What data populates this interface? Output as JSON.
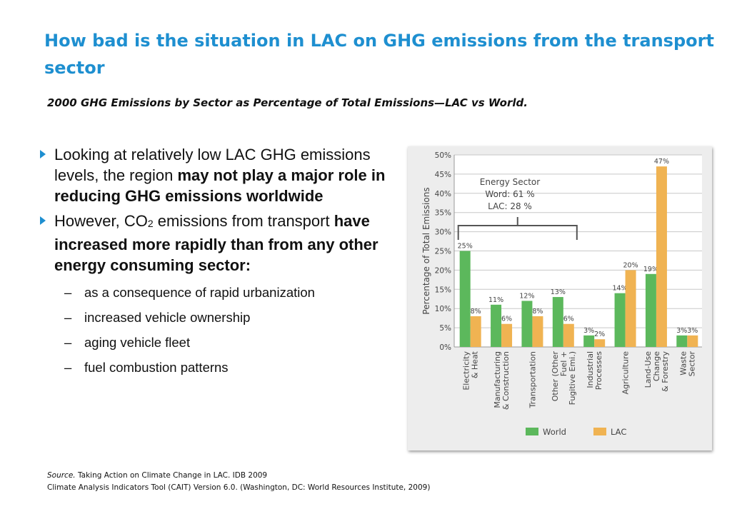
{
  "slide": {
    "title": "How bad is the situation in LAC on GHG emissions from the transport sector",
    "chart_caption": "2000 GHG Emissions by Sector as Percentage of Total Emissions—LAC vs World."
  },
  "bullets": [
    {
      "pre": "Looking at relatively low LAC GHG emissions levels, the region ",
      "bold": "may not play a major role in reducing GHG emissions worldwide"
    },
    {
      "pre": "However, CO",
      "sub": "2",
      "mid": " emissions from transport ",
      "bold": "have increased more rapidly than from any other energy consuming sector:"
    }
  ],
  "subbullets": [
    "as a consequence of rapid urbanization",
    "increased vehicle ownership",
    "aging vehicle fleet",
    "fuel combustion patterns"
  ],
  "dash": "–",
  "source": {
    "line1_label": "Source.",
    "line1": " Taking Action on Climate Change in LAC. IDB 2009",
    "line2": "Climate Analysis Indicators Tool (CAIT) Version 6.0. (Washington, DC: World Resources Institute, 2009)"
  },
  "colors": {
    "accent": "#1e8fd0",
    "world": "#5cb85c",
    "lac": "#f0b352"
  },
  "chart_data": {
    "type": "bar",
    "ylabel": "Percentage of Total Emissions",
    "ylim": [
      0,
      50
    ],
    "yticks": [
      "0%",
      "5%",
      "10%",
      "15%",
      "20%",
      "25%",
      "30%",
      "35%",
      "40%",
      "45%",
      "50%"
    ],
    "categories": [
      [
        "Electricity",
        "& Heat"
      ],
      [
        "Manufacturing",
        "& Construction"
      ],
      [
        "Transportation"
      ],
      [
        "Other (Other",
        "Fuel +",
        "Fugitive Emi.)"
      ],
      [
        "Industrial",
        "Processes"
      ],
      [
        "Agriculture"
      ],
      [
        "Land-Use",
        "Change",
        "& Forestry"
      ],
      [
        "Waste",
        "Sector"
      ]
    ],
    "series": [
      {
        "name": "World",
        "values": [
          25,
          11,
          12,
          13,
          3,
          14,
          19,
          3
        ],
        "labels": [
          "25%",
          "11%",
          "12%",
          "13%",
          "3%",
          "14%",
          "19%",
          "3%"
        ]
      },
      {
        "name": "LAC",
        "values": [
          8,
          6,
          8,
          6,
          2,
          20,
          47,
          3
        ],
        "labels": [
          "8%",
          "6%",
          "8%",
          "6%",
          "2%",
          "20%",
          "47%",
          "3%"
        ]
      }
    ],
    "annotation": [
      "Energy Sector",
      "Word: 61 %",
      "LAC: 28 %"
    ],
    "legend": "bottom"
  }
}
